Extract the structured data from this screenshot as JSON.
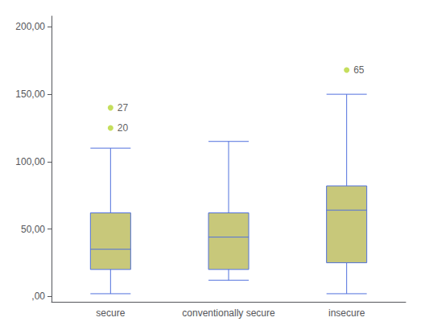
{
  "chart_data": {
    "type": "boxplot",
    "categories": [
      "secure",
      "conventionally secure",
      "insecure"
    ],
    "boxes": [
      {
        "q1": 20,
        "median": 35,
        "q3": 62,
        "whislo": 2,
        "whishi": 110,
        "fliers": [
          125,
          140
        ],
        "flier_labels": [
          "20",
          "27"
        ]
      },
      {
        "q1": 20,
        "median": 44,
        "q3": 62,
        "whislo": 12,
        "whishi": 115,
        "fliers": [],
        "flier_labels": []
      },
      {
        "q1": 25,
        "median": 64,
        "q3": 82,
        "whislo": 2,
        "whishi": 150,
        "fliers": [
          168
        ],
        "flier_labels": [
          "65"
        ]
      }
    ],
    "color": "#c8c87a",
    "ylim": [
      -4,
      208
    ],
    "yticks": [
      {
        "value": 0,
        "label": ",00"
      },
      {
        "value": 50,
        "label": "50,00"
      },
      {
        "value": 100,
        "label": "100,00"
      },
      {
        "value": 150,
        "label": "150,00"
      },
      {
        "value": 200,
        "label": "200,00"
      }
    ],
    "grid": false
  }
}
